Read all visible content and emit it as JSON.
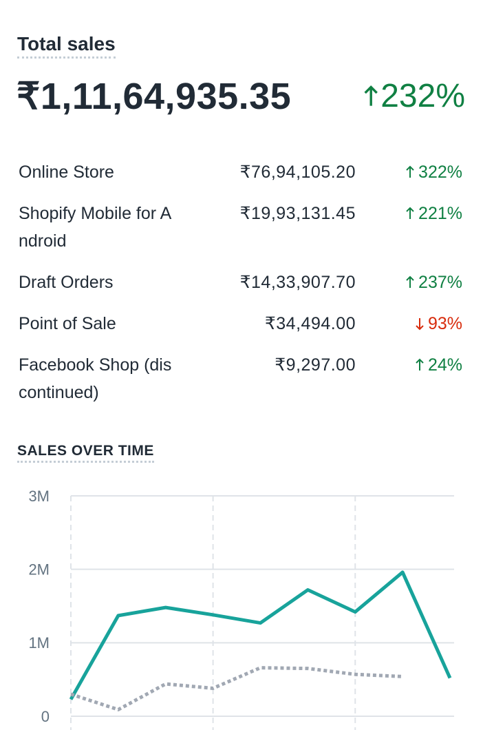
{
  "header": {
    "title": "Total sales",
    "total": "₹1,11,64,935.35",
    "change": "232%",
    "direction": "up"
  },
  "table": {
    "rows": [
      {
        "name": "Online Store",
        "value": "₹76,94,105.20",
        "change": "322%",
        "direction": "up"
      },
      {
        "name": "Shopify Mobile for Android",
        "value": "₹19,93,131.45",
        "change": "221%",
        "direction": "up"
      },
      {
        "name": "Draft Orders",
        "value": "₹14,33,907.70",
        "change": "237%",
        "direction": "up"
      },
      {
        "name": "Point of Sale",
        "value": "₹34,494.00",
        "change": "93%",
        "direction": "down"
      },
      {
        "name": "Facebook Shop (discontinued)",
        "value": "₹9,297.00",
        "change": "24%",
        "direction": "up"
      }
    ]
  },
  "chart_data": {
    "type": "line",
    "title": "SALES OVER TIME",
    "categories": [
      null,
      null,
      null,
      null,
      null,
      null,
      null,
      null,
      null
    ],
    "series": [
      {
        "color": "#18a39b",
        "style": "solid",
        "values": [
          230000,
          1370000,
          1480000,
          1380000,
          1270000,
          1720000,
          1420000,
          1960000,
          520000
        ]
      },
      {
        "color": "#a1a8b3",
        "style": "dotted",
        "values": [
          300000,
          90000,
          440000,
          380000,
          660000,
          650000,
          570000,
          540000,
          null
        ]
      }
    ],
    "ylim": [
      0,
      3000000
    ],
    "yticks": [
      0,
      {
        "value": 1000000,
        "label": "1M"
      },
      {
        "value": 2000000,
        "label": "2M"
      },
      {
        "value": 3000000,
        "label": "3M"
      }
    ],
    "grid": true
  }
}
